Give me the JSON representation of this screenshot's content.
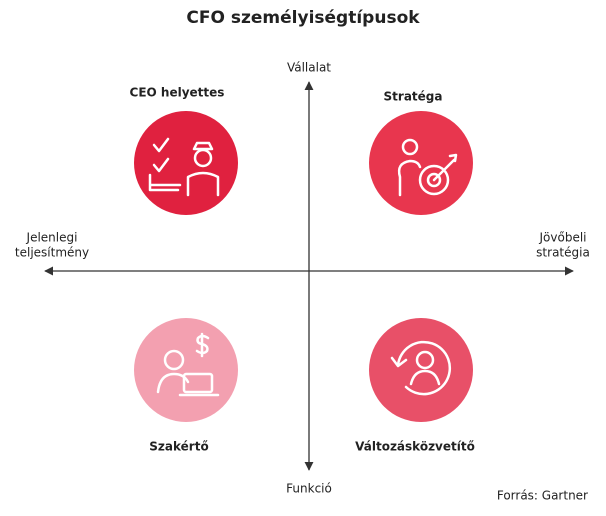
{
  "title": "CFO személyiségtípusok",
  "axes": {
    "top": "Vállalat",
    "bottom": "Funkció",
    "left": [
      "Jelenlegi",
      "teljesítmény"
    ],
    "right": [
      "Jövőbeli",
      "stratégia"
    ]
  },
  "quadrants": [
    {
      "label": "CEO helyettes"
    },
    {
      "label": "Stratéga"
    },
    {
      "label": "Szakértő"
    },
    {
      "label": "Változásközvetítő"
    }
  ],
  "source": "Forrás: Gartner"
}
